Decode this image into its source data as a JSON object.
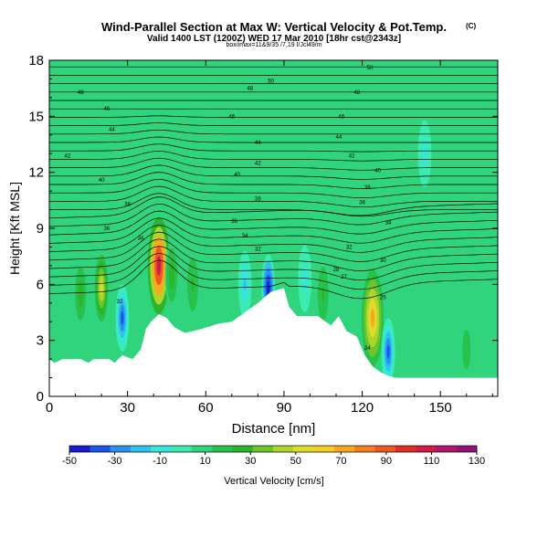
{
  "header": {
    "title": "Wind-Parallel Section at Max W: Vertical Velocity & Pot.Temp.",
    "copyright": "(C)",
    "subtitle": "Valid 1400 LST (1200Z) WED 17 Mar 2010 [18hr cst@2343z]",
    "info": "box/imax=11&9/35 /7,19 I/Jcl49/m"
  },
  "chart_data": {
    "type": "heatmap",
    "title": "Wind-Parallel Section at Max W: Vertical Velocity & Pot.Temp.",
    "xlabel": "Distance [nm]",
    "ylabel": "Height [Kft MSL]",
    "xlim": [
      0,
      172
    ],
    "ylim": [
      0,
      18
    ],
    "x_ticks": [
      0,
      30,
      60,
      90,
      120,
      150
    ],
    "y_ticks": [
      0,
      3,
      6,
      9,
      12,
      15,
      18
    ],
    "colorbar": {
      "label": "Vertical Velocity [cm/s]",
      "tick_labels": [
        "-50",
        "-30",
        "-10",
        "10",
        "30",
        "50",
        "70",
        "90",
        "110",
        "130"
      ],
      "colors": [
        "#1a1acc",
        "#1a55e6",
        "#2a90ee",
        "#30c2ee",
        "#35e8d9",
        "#3cebb0",
        "#2fd47d",
        "#27c24b",
        "#2ab52a",
        "#6dc628",
        "#aed52c",
        "#dede2a",
        "#f5ce20",
        "#f7a81e",
        "#f2801f",
        "#ec5a22",
        "#e33026",
        "#d01a4a",
        "#b0176e",
        "#8e1578"
      ]
    },
    "terrain": [
      [
        0,
        2
      ],
      [
        2,
        1.8
      ],
      [
        5,
        2
      ],
      [
        12,
        2
      ],
      [
        15,
        1.8
      ],
      [
        17,
        2
      ],
      [
        23,
        2
      ],
      [
        25,
        1.8
      ],
      [
        28,
        2.2
      ],
      [
        32,
        2
      ],
      [
        35,
        2.5
      ],
      [
        36,
        3
      ],
      [
        37,
        3.6
      ],
      [
        39,
        4
      ],
      [
        42,
        4.4
      ],
      [
        45,
        4.2
      ],
      [
        48,
        3.7
      ],
      [
        52,
        3.4
      ],
      [
        58,
        3.6
      ],
      [
        65,
        3.9
      ],
      [
        70,
        4
      ],
      [
        75,
        4.5
      ],
      [
        80,
        5
      ],
      [
        85,
        5.6
      ],
      [
        90,
        5.8
      ],
      [
        92,
        4.8
      ],
      [
        95,
        4.3
      ],
      [
        103,
        4.3
      ],
      [
        108,
        3.8
      ],
      [
        111,
        4.3
      ],
      [
        114,
        3.5
      ],
      [
        118,
        3.2
      ],
      [
        121,
        2.2
      ],
      [
        124,
        1.6
      ],
      [
        127,
        1.3
      ],
      [
        130,
        1.1
      ],
      [
        133,
        1
      ],
      [
        140,
        1
      ],
      [
        160,
        1
      ],
      [
        172,
        1
      ]
    ],
    "updraft_cores": [
      {
        "x": 42,
        "z": 7,
        "peak_cm_s": 110
      },
      {
        "x": 124,
        "z": 4.2,
        "peak_cm_s": 70
      },
      {
        "x": 20,
        "z": 5.8,
        "peak_cm_s": 50
      },
      {
        "x": 12,
        "z": 5.5,
        "peak_cm_s": 30
      },
      {
        "x": 47,
        "z": 6.5,
        "peak_cm_s": 30
      },
      {
        "x": 55,
        "z": 6,
        "peak_cm_s": 25
      },
      {
        "x": 105,
        "z": 5.5,
        "peak_cm_s": 25
      },
      {
        "x": 160,
        "z": 2.5,
        "peak_cm_s": 20
      }
    ],
    "downdraft_cores": [
      {
        "x": 28,
        "z": 4.2,
        "min_cm_s": -40
      },
      {
        "x": 84,
        "z": 5.8,
        "min_cm_s": -45
      },
      {
        "x": 130,
        "z": 2.4,
        "min_cm_s": -35
      },
      {
        "x": 75,
        "z": 6,
        "min_cm_s": -15
      },
      {
        "x": 98,
        "z": 6.3,
        "min_cm_s": -12
      },
      {
        "x": 144,
        "z": 13,
        "min_cm_s": -12
      }
    ],
    "contour_labels": [
      {
        "x": 12,
        "z": 16.2,
        "text": "48"
      },
      {
        "x": 22,
        "z": 15.3,
        "text": "46"
      },
      {
        "x": 24,
        "z": 14.2,
        "text": "44"
      },
      {
        "x": 7,
        "z": 12.8,
        "text": "42"
      },
      {
        "x": 20,
        "z": 11.5,
        "text": "40"
      },
      {
        "x": 30,
        "z": 10.2,
        "text": "38"
      },
      {
        "x": 22,
        "z": 8.9,
        "text": "36"
      },
      {
        "x": 35,
        "z": 8.4,
        "text": "34"
      },
      {
        "x": 27,
        "z": 5,
        "text": "32"
      },
      {
        "x": 85,
        "z": 16.8,
        "text": "50"
      },
      {
        "x": 77,
        "z": 16.4,
        "text": "48"
      },
      {
        "x": 70,
        "z": 14.9,
        "text": "46"
      },
      {
        "x": 80,
        "z": 13.5,
        "text": "44"
      },
      {
        "x": 80,
        "z": 12.4,
        "text": "42"
      },
      {
        "x": 72,
        "z": 11.8,
        "text": "40"
      },
      {
        "x": 80,
        "z": 10.5,
        "text": "38"
      },
      {
        "x": 71,
        "z": 9.3,
        "text": "36"
      },
      {
        "x": 75,
        "z": 8.5,
        "text": "34"
      },
      {
        "x": 80,
        "z": 7.8,
        "text": "32"
      },
      {
        "x": 123,
        "z": 17.5,
        "text": "50"
      },
      {
        "x": 118,
        "z": 16.2,
        "text": "48"
      },
      {
        "x": 112,
        "z": 14.9,
        "text": "46"
      },
      {
        "x": 111,
        "z": 13.8,
        "text": "44"
      },
      {
        "x": 116,
        "z": 12.8,
        "text": "42"
      },
      {
        "x": 126,
        "z": 12,
        "text": "40"
      },
      {
        "x": 122,
        "z": 11.1,
        "text": "38"
      },
      {
        "x": 120,
        "z": 10.3,
        "text": "36"
      },
      {
        "x": 130,
        "z": 9.2,
        "text": "34"
      },
      {
        "x": 115,
        "z": 7.9,
        "text": "32"
      },
      {
        "x": 128,
        "z": 7.2,
        "text": "30"
      },
      {
        "x": 110,
        "z": 6.7,
        "text": "28"
      },
      {
        "x": 113,
        "z": 6.3,
        "text": "27"
      },
      {
        "x": 128,
        "z": 5.2,
        "text": "25"
      },
      {
        "x": 122,
        "z": 2.5,
        "text": "24"
      }
    ]
  }
}
